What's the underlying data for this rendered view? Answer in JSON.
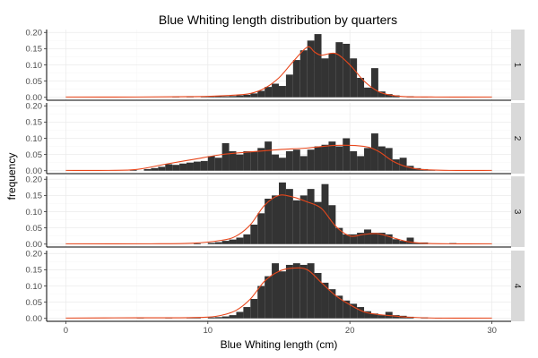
{
  "chart_data": {
    "type": "bar",
    "title": "Blue Whiting length distribution by quarters",
    "xlabel": "Blue Whiting length (cm)",
    "ylabel": "frequency",
    "xlim": [
      0,
      30
    ],
    "ylim": [
      0,
      0.2
    ],
    "x_ticks": [
      0,
      10,
      20,
      30
    ],
    "y_ticks": [
      0.0,
      0.05,
      0.1,
      0.15,
      0.2
    ],
    "grid": true,
    "bin_width": 0.5,
    "smooth_color": "#e8471c",
    "bar_color": "#333333",
    "facets": [
      {
        "strip": "1",
        "bars": [
          [
            7.5,
            0.002
          ],
          [
            8.5,
            0.002
          ],
          [
            9.5,
            0.003
          ],
          [
            10,
            0.002
          ],
          [
            10.5,
            0.004
          ],
          [
            11,
            0.003
          ],
          [
            11.5,
            0.004
          ],
          [
            12,
            0.006
          ],
          [
            12.5,
            0.008
          ],
          [
            13,
            0.012
          ],
          [
            13.5,
            0.02
          ],
          [
            14,
            0.032
          ],
          [
            14.5,
            0.042
          ],
          [
            15,
            0.035
          ],
          [
            15.5,
            0.07
          ],
          [
            16,
            0.115
          ],
          [
            16.5,
            0.145
          ],
          [
            17,
            0.175
          ],
          [
            17.5,
            0.195
          ],
          [
            18,
            0.12
          ],
          [
            18.5,
            0.135
          ],
          [
            19,
            0.17
          ],
          [
            19.5,
            0.165
          ],
          [
            20,
            0.12
          ],
          [
            20.5,
            0.06
          ],
          [
            21,
            0.03
          ],
          [
            21.5,
            0.09
          ],
          [
            22,
            0.018
          ],
          [
            22.5,
            0.01
          ],
          [
            23,
            0.006
          ],
          [
            24,
            0.003
          ],
          [
            25,
            0.002
          ],
          [
            27,
            0.002
          ]
        ],
        "smooth": [
          [
            0,
            0.001
          ],
          [
            5,
            0.001
          ],
          [
            8,
            0.002
          ],
          [
            10,
            0.003
          ],
          [
            12,
            0.007
          ],
          [
            13,
            0.012
          ],
          [
            14,
            0.028
          ],
          [
            15,
            0.06
          ],
          [
            16,
            0.11
          ],
          [
            17,
            0.155
          ],
          [
            17.5,
            0.14
          ],
          [
            18,
            0.13
          ],
          [
            19,
            0.135
          ],
          [
            20,
            0.1
          ],
          [
            21,
            0.05
          ],
          [
            22,
            0.018
          ],
          [
            23,
            0.006
          ],
          [
            24,
            0.002
          ],
          [
            26,
            0.001
          ],
          [
            30,
            0.001
          ]
        ]
      },
      {
        "strip": "2",
        "bars": [
          [
            4.5,
            0.002
          ],
          [
            5.5,
            0.005
          ],
          [
            6,
            0.008
          ],
          [
            6.5,
            0.012
          ],
          [
            7,
            0.02
          ],
          [
            7.5,
            0.018
          ],
          [
            8,
            0.022
          ],
          [
            8.5,
            0.025
          ],
          [
            9,
            0.028
          ],
          [
            9.5,
            0.03
          ],
          [
            10,
            0.045
          ],
          [
            10.5,
            0.04
          ],
          [
            11,
            0.085
          ],
          [
            11.5,
            0.06
          ],
          [
            12,
            0.05
          ],
          [
            12.5,
            0.06
          ],
          [
            13,
            0.06
          ],
          [
            13.5,
            0.07
          ],
          [
            14,
            0.09
          ],
          [
            14.5,
            0.05
          ],
          [
            15,
            0.04
          ],
          [
            15.5,
            0.06
          ],
          [
            16,
            0.065
          ],
          [
            16.5,
            0.045
          ],
          [
            17,
            0.065
          ],
          [
            17.5,
            0.075
          ],
          [
            18,
            0.08
          ],
          [
            18.5,
            0.09
          ],
          [
            19,
            0.075
          ],
          [
            19.5,
            0.1
          ],
          [
            20,
            0.06
          ],
          [
            20.5,
            0.045
          ],
          [
            21,
            0.07
          ],
          [
            21.5,
            0.115
          ],
          [
            22,
            0.075
          ],
          [
            22.5,
            0.07
          ],
          [
            23,
            0.035
          ],
          [
            23.5,
            0.04
          ],
          [
            24,
            0.015
          ],
          [
            24.5,
            0.008
          ],
          [
            25,
            0.005
          ],
          [
            25.5,
            0.003
          ]
        ],
        "smooth": [
          [
            0,
            0.001
          ],
          [
            3,
            0.001
          ],
          [
            5,
            0.004
          ],
          [
            7,
            0.02
          ],
          [
            9,
            0.035
          ],
          [
            11,
            0.05
          ],
          [
            13,
            0.058
          ],
          [
            15,
            0.065
          ],
          [
            17,
            0.07
          ],
          [
            19,
            0.078
          ],
          [
            21,
            0.075
          ],
          [
            22,
            0.06
          ],
          [
            23,
            0.03
          ],
          [
            24,
            0.012
          ],
          [
            25,
            0.004
          ],
          [
            27,
            0.001
          ],
          [
            30,
            0.001
          ]
        ]
      },
      {
        "strip": "3",
        "bars": [
          [
            9,
            0.002
          ],
          [
            10,
            0.004
          ],
          [
            10.5,
            0.006
          ],
          [
            11,
            0.01
          ],
          [
            11.5,
            0.014
          ],
          [
            12,
            0.02
          ],
          [
            12.5,
            0.03
          ],
          [
            13,
            0.06
          ],
          [
            13.5,
            0.095
          ],
          [
            14,
            0.14
          ],
          [
            14.5,
            0.15
          ],
          [
            15,
            0.19
          ],
          [
            15.5,
            0.17
          ],
          [
            16,
            0.135
          ],
          [
            16.5,
            0.15
          ],
          [
            17,
            0.17
          ],
          [
            17.5,
            0.13
          ],
          [
            18,
            0.185
          ],
          [
            18.5,
            0.12
          ],
          [
            19,
            0.05
          ],
          [
            19.5,
            0.03
          ],
          [
            20,
            0.03
          ],
          [
            20.5,
            0.035
          ],
          [
            21,
            0.045
          ],
          [
            21.5,
            0.035
          ],
          [
            22,
            0.035
          ],
          [
            22.5,
            0.03
          ],
          [
            23,
            0.015
          ],
          [
            23.5,
            0.01
          ],
          [
            24,
            0.02
          ],
          [
            24.5,
            0.005
          ],
          [
            25,
            0.005
          ],
          [
            27,
            0.003
          ]
        ],
        "smooth": [
          [
            0,
            0.001
          ],
          [
            6,
            0.001
          ],
          [
            9,
            0.003
          ],
          [
            11,
            0.012
          ],
          [
            12,
            0.025
          ],
          [
            13,
            0.06
          ],
          [
            14,
            0.12
          ],
          [
            15,
            0.15
          ],
          [
            16,
            0.145
          ],
          [
            17,
            0.13
          ],
          [
            18,
            0.11
          ],
          [
            19,
            0.055
          ],
          [
            20,
            0.025
          ],
          [
            21,
            0.03
          ],
          [
            22,
            0.032
          ],
          [
            23,
            0.02
          ],
          [
            24,
            0.008
          ],
          [
            25,
            0.003
          ],
          [
            27,
            0.001
          ],
          [
            30,
            0.001
          ]
        ]
      },
      {
        "strip": "4",
        "bars": [
          [
            5,
            0.003
          ],
          [
            7,
            0.002
          ],
          [
            8.5,
            0.002
          ],
          [
            9,
            0.003
          ],
          [
            10,
            0.003
          ],
          [
            10.5,
            0.004
          ],
          [
            11,
            0.006
          ],
          [
            11.5,
            0.01
          ],
          [
            12,
            0.02
          ],
          [
            12.5,
            0.035
          ],
          [
            13,
            0.06
          ],
          [
            13.5,
            0.1
          ],
          [
            14,
            0.13
          ],
          [
            14.5,
            0.17
          ],
          [
            15,
            0.145
          ],
          [
            15.5,
            0.165
          ],
          [
            16,
            0.17
          ],
          [
            16.5,
            0.165
          ],
          [
            17,
            0.17
          ],
          [
            17.5,
            0.14
          ],
          [
            18,
            0.11
          ],
          [
            18.5,
            0.09
          ],
          [
            19,
            0.07
          ],
          [
            19.5,
            0.055
          ],
          [
            20,
            0.045
          ],
          [
            20.5,
            0.035
          ],
          [
            21,
            0.022
          ],
          [
            21.5,
            0.015
          ],
          [
            22,
            0.01
          ],
          [
            22.5,
            0.02
          ],
          [
            23,
            0.01
          ],
          [
            23.5,
            0.008
          ],
          [
            24,
            0.005
          ],
          [
            25,
            0.003
          ],
          [
            26,
            0.002
          ]
        ],
        "smooth": [
          [
            0,
            0.001
          ],
          [
            5,
            0.002
          ],
          [
            8,
            0.002
          ],
          [
            10,
            0.004
          ],
          [
            11,
            0.01
          ],
          [
            12,
            0.025
          ],
          [
            13,
            0.06
          ],
          [
            14,
            0.115
          ],
          [
            15,
            0.145
          ],
          [
            16,
            0.155
          ],
          [
            17,
            0.15
          ],
          [
            18,
            0.11
          ],
          [
            19,
            0.07
          ],
          [
            20,
            0.042
          ],
          [
            21,
            0.02
          ],
          [
            22,
            0.012
          ],
          [
            23,
            0.008
          ],
          [
            24,
            0.004
          ],
          [
            26,
            0.001
          ],
          [
            30,
            0.001
          ]
        ]
      }
    ]
  }
}
